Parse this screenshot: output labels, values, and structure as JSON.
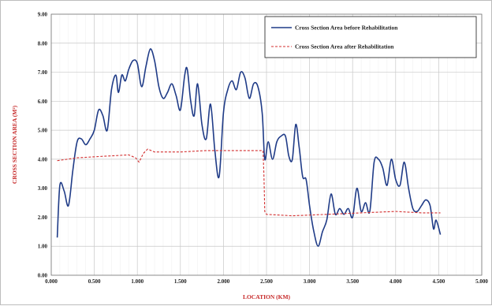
{
  "chart_data": {
    "type": "line",
    "title": "",
    "xlabel": "LOCATION (KM)",
    "ylabel": "CROSS SECTION AREA (M²)",
    "xlim": [
      0,
      5
    ],
    "ylim": [
      0,
      9
    ],
    "x_tick_labels": [
      "0.000",
      "0.500",
      "1.000",
      "1.500",
      "2.000",
      "2.500",
      "3.000",
      "3.500",
      "4.000",
      "4.500",
      "5.000"
    ],
    "y_tick_labels": [
      "0.00",
      "1.00",
      "2.00",
      "3.00",
      "4.00",
      "5.00",
      "6.00",
      "7.00",
      "8.00",
      "9.00"
    ],
    "grid": true,
    "legend_position": "top-right",
    "series": [
      {
        "name": "Cross Section Area before Rehabilitation",
        "color": "#1f3b87",
        "style": "solid",
        "points": [
          [
            0.07,
            1.3
          ],
          [
            0.1,
            3.1
          ],
          [
            0.15,
            2.9
          ],
          [
            0.2,
            2.4
          ],
          [
            0.25,
            3.6
          ],
          [
            0.3,
            4.6
          ],
          [
            0.35,
            4.7
          ],
          [
            0.4,
            4.5
          ],
          [
            0.45,
            4.7
          ],
          [
            0.5,
            5.0
          ],
          [
            0.55,
            5.7
          ],
          [
            0.6,
            5.5
          ],
          [
            0.65,
            5.0
          ],
          [
            0.7,
            6.4
          ],
          [
            0.75,
            6.9
          ],
          [
            0.78,
            6.3
          ],
          [
            0.82,
            6.9
          ],
          [
            0.86,
            6.7
          ],
          [
            0.9,
            7.1
          ],
          [
            0.95,
            7.4
          ],
          [
            1.0,
            7.3
          ],
          [
            1.05,
            6.5
          ],
          [
            1.1,
            7.2
          ],
          [
            1.15,
            7.8
          ],
          [
            1.2,
            7.4
          ],
          [
            1.25,
            6.5
          ],
          [
            1.3,
            6.1
          ],
          [
            1.35,
            6.3
          ],
          [
            1.4,
            6.6
          ],
          [
            1.45,
            6.2
          ],
          [
            1.5,
            5.7
          ],
          [
            1.55,
            6.9
          ],
          [
            1.58,
            7.1
          ],
          [
            1.62,
            6.0
          ],
          [
            1.66,
            5.5
          ],
          [
            1.7,
            6.6
          ],
          [
            1.75,
            5.2
          ],
          [
            1.8,
            4.7
          ],
          [
            1.85,
            5.9
          ],
          [
            1.9,
            4.3
          ],
          [
            1.95,
            3.4
          ],
          [
            2.0,
            5.6
          ],
          [
            2.05,
            6.4
          ],
          [
            2.1,
            6.7
          ],
          [
            2.15,
            6.4
          ],
          [
            2.2,
            7.0
          ],
          [
            2.25,
            6.8
          ],
          [
            2.3,
            6.1
          ],
          [
            2.35,
            6.6
          ],
          [
            2.4,
            6.5
          ],
          [
            2.45,
            5.6
          ],
          [
            2.48,
            4.0
          ],
          [
            2.52,
            4.6
          ],
          [
            2.57,
            4.0
          ],
          [
            2.62,
            4.6
          ],
          [
            2.67,
            4.8
          ],
          [
            2.72,
            4.8
          ],
          [
            2.76,
            4.1
          ],
          [
            2.8,
            4.0
          ],
          [
            2.84,
            5.2
          ],
          [
            2.88,
            4.4
          ],
          [
            2.92,
            3.4
          ],
          [
            2.96,
            3.3
          ],
          [
            3.0,
            2.4
          ],
          [
            3.05,
            1.5
          ],
          [
            3.1,
            1.0
          ],
          [
            3.15,
            1.5
          ],
          [
            3.2,
            1.9
          ],
          [
            3.25,
            2.8
          ],
          [
            3.3,
            2.1
          ],
          [
            3.35,
            2.3
          ],
          [
            3.4,
            2.1
          ],
          [
            3.45,
            2.3
          ],
          [
            3.5,
            2.0
          ],
          [
            3.55,
            3.0
          ],
          [
            3.6,
            2.2
          ],
          [
            3.65,
            2.5
          ],
          [
            3.7,
            2.2
          ],
          [
            3.75,
            3.9
          ],
          [
            3.8,
            4.0
          ],
          [
            3.85,
            3.7
          ],
          [
            3.9,
            3.1
          ],
          [
            3.95,
            4.0
          ],
          [
            4.0,
            3.3
          ],
          [
            4.05,
            3.1
          ],
          [
            4.1,
            3.9
          ],
          [
            4.15,
            3.0
          ],
          [
            4.2,
            2.3
          ],
          [
            4.25,
            2.2
          ],
          [
            4.3,
            2.4
          ],
          [
            4.35,
            2.6
          ],
          [
            4.4,
            2.4
          ],
          [
            4.44,
            1.6
          ],
          [
            4.47,
            1.9
          ],
          [
            4.52,
            1.4
          ]
        ]
      },
      {
        "name": "Cross Section Area after Rehabilitation",
        "color": "#d32f2f",
        "style": "dashed",
        "points": [
          [
            0.07,
            3.95
          ],
          [
            0.3,
            4.05
          ],
          [
            0.6,
            4.1
          ],
          [
            0.9,
            4.15
          ],
          [
            0.98,
            4.05
          ],
          [
            1.02,
            3.9
          ],
          [
            1.07,
            4.2
          ],
          [
            1.12,
            4.35
          ],
          [
            1.2,
            4.25
          ],
          [
            1.5,
            4.25
          ],
          [
            1.8,
            4.3
          ],
          [
            2.1,
            4.3
          ],
          [
            2.4,
            4.3
          ],
          [
            2.46,
            4.3
          ],
          [
            2.47,
            3.5
          ],
          [
            2.48,
            2.2
          ],
          [
            2.5,
            2.1
          ],
          [
            2.8,
            2.05
          ],
          [
            3.2,
            2.1
          ],
          [
            3.6,
            2.15
          ],
          [
            4.0,
            2.2
          ],
          [
            4.3,
            2.15
          ],
          [
            4.52,
            2.15
          ]
        ]
      }
    ]
  }
}
